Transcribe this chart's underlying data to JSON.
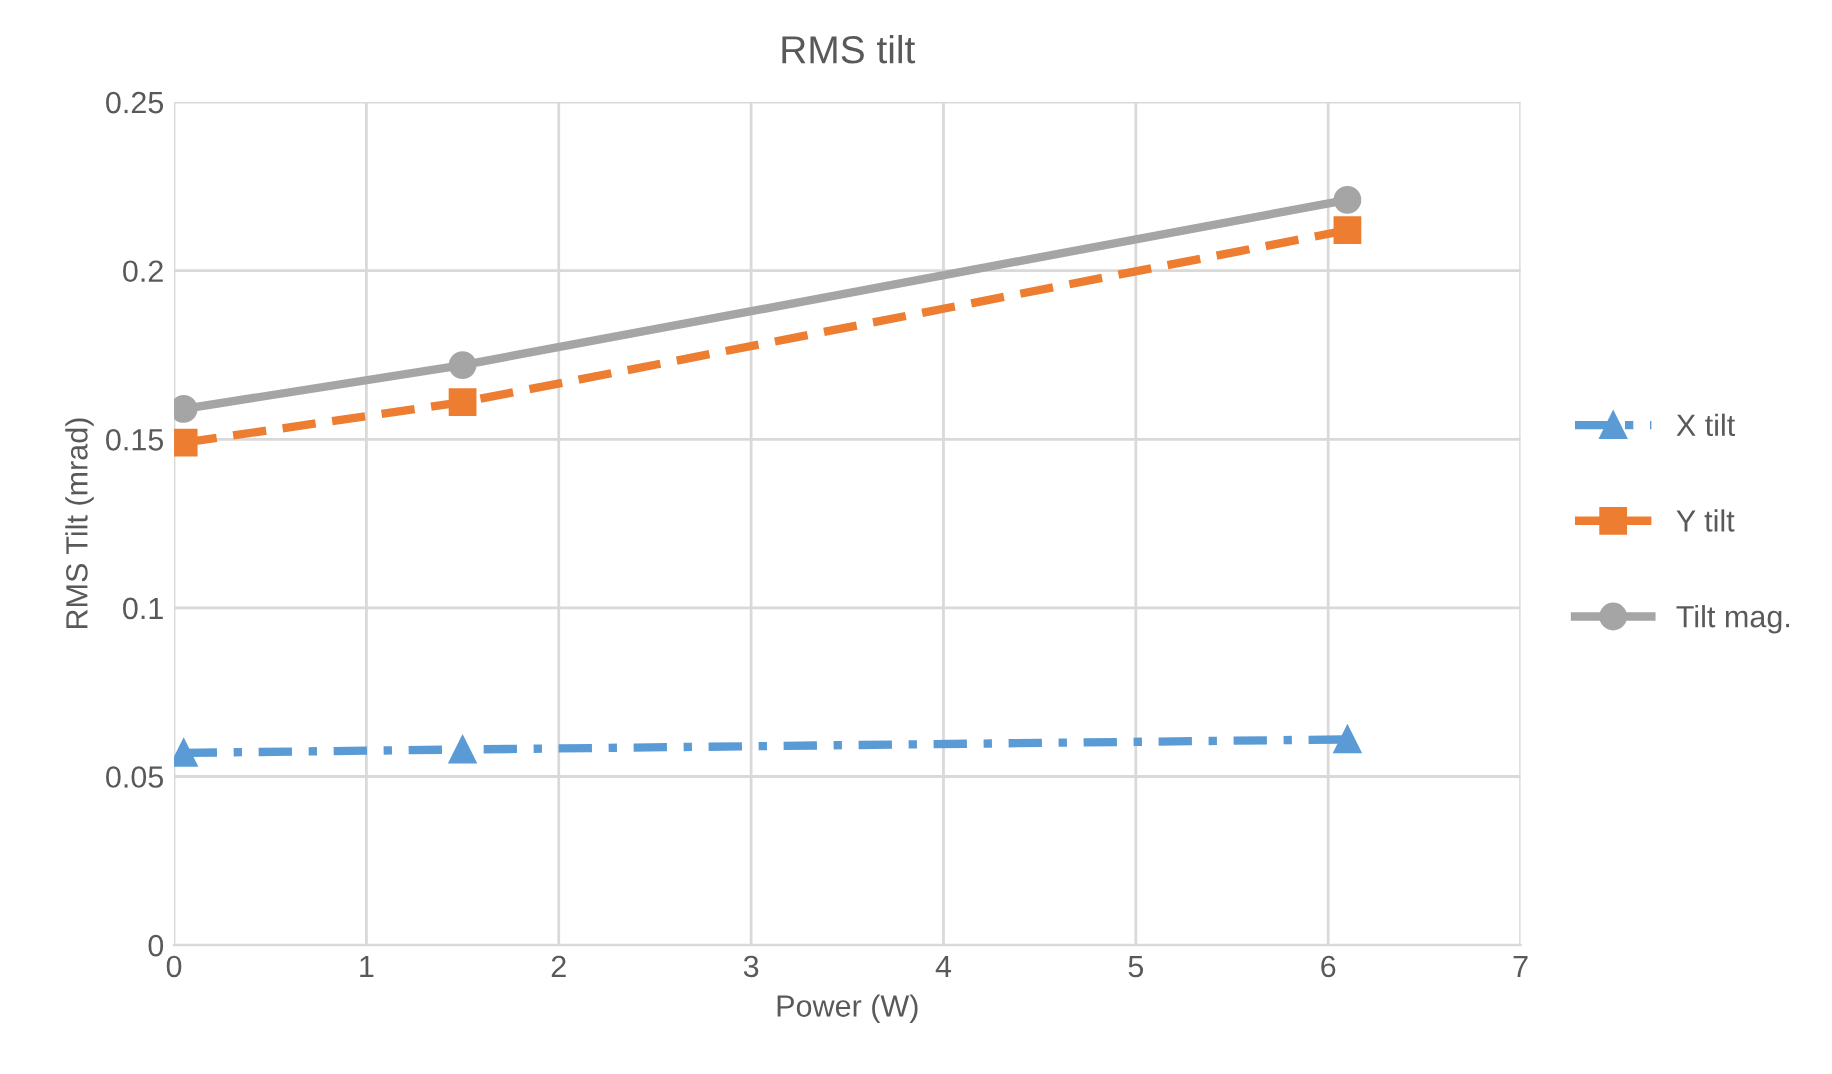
{
  "chart_data": {
    "type": "line",
    "title": "RMS tilt",
    "xlabel": "Power (W)",
    "ylabel": "RMS Tilt (mrad)",
    "xlim": [
      0,
      7
    ],
    "xticks": [
      0,
      1,
      2,
      3,
      4,
      5,
      6,
      7
    ],
    "ylim": [
      0,
      0.25
    ],
    "yticks": [
      0,
      0.05,
      0.1,
      0.15,
      0.2,
      0.25
    ],
    "grid": true,
    "legend": "right",
    "series": [
      {
        "name": "X tilt",
        "color": "#5b9bd5",
        "x": [
          0.05,
          1.5,
          6.1
        ],
        "values": [
          0.057,
          0.058,
          0.061
        ],
        "marker": "triangle",
        "line_style": "dashdot"
      },
      {
        "name": "Y tilt",
        "color": "#ed7d31",
        "x": [
          0.05,
          1.5,
          6.1
        ],
        "values": [
          0.149,
          0.161,
          0.212
        ],
        "marker": "square",
        "line_style": "dashed"
      },
      {
        "name": "Tilt mag.",
        "color": "#a5a5a5",
        "x": [
          0.05,
          1.5,
          6.1
        ],
        "values": [
          0.159,
          0.172,
          0.221
        ],
        "marker": "circle",
        "line_style": "solid"
      }
    ]
  }
}
